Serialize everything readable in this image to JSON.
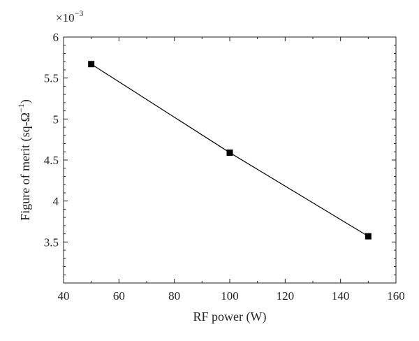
{
  "chart_data": {
    "type": "line",
    "title": "",
    "xlabel": "RF power (W)",
    "ylabel_main": "Figure of merit (sq-Ω",
    "ylabel_sup": "−1",
    "ylabel_tail": ")",
    "y_multiplier": {
      "base": "×10",
      "exponent": "−3"
    },
    "xlim": [
      40,
      160
    ],
    "ylim": [
      3.0,
      6.0
    ],
    "xticks": [
      40,
      60,
      80,
      100,
      120,
      140,
      160
    ],
    "xtick_labels": [
      "40",
      "60",
      "80",
      "100",
      "120",
      "140",
      "160"
    ],
    "yticks": [
      3.5,
      4.0,
      4.5,
      5.0,
      5.5,
      6.0
    ],
    "ytick_labels": [
      "3.5",
      "4",
      "4.5",
      "5",
      "5.5",
      "6"
    ],
    "grid": false,
    "marker": "square",
    "color": "#000000",
    "series": [
      {
        "x": [
          50,
          100,
          150
        ],
        "y": [
          5.67,
          4.59,
          3.57
        ]
      }
    ]
  }
}
